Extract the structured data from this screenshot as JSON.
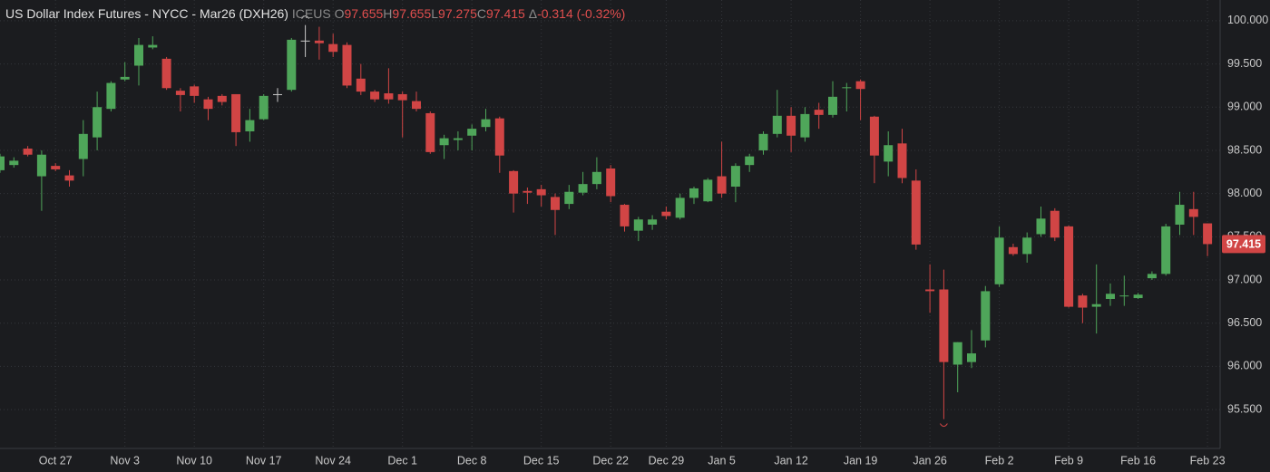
{
  "header": {
    "title": "US Dollar Index Futures - NYCC - Mar26 (DXH26)",
    "exchange": "ICEUS",
    "ohlc": [
      {
        "label": "O",
        "value": 97.655
      },
      {
        "label": "H",
        "value": 97.655
      },
      {
        "label": "L",
        "value": 97.275
      },
      {
        "label": "C",
        "value": 97.415
      }
    ],
    "change_symbol": "Δ",
    "change": -0.314,
    "change_pct": "(-0.32%)"
  },
  "chart_data": {
    "type": "candlestick",
    "categories": [
      null,
      null,
      null,
      null,
      "Oct 27",
      null,
      null,
      null,
      null,
      "Nov 3",
      null,
      null,
      null,
      null,
      "Nov 10",
      null,
      null,
      null,
      null,
      "Nov 17",
      null,
      null,
      null,
      null,
      "Nov 24",
      null,
      null,
      null,
      null,
      "Dec 1",
      null,
      null,
      null,
      null,
      "Dec 8",
      null,
      null,
      null,
      null,
      "Dec 15",
      null,
      null,
      null,
      null,
      "Dec 22",
      null,
      null,
      null,
      "Dec 29",
      null,
      null,
      null,
      "Jan 5",
      null,
      null,
      null,
      null,
      "Jan 12",
      null,
      null,
      null,
      null,
      "Jan 19",
      null,
      null,
      null,
      null,
      "Jan 26",
      null,
      null,
      null,
      null,
      "Feb 2",
      null,
      null,
      null,
      null,
      "Feb 9",
      null,
      null,
      null,
      null,
      "Feb 16",
      null,
      null,
      null,
      null,
      "Feb 23"
    ],
    "open": [
      98.27,
      98.33,
      98.52,
      98.2,
      98.32,
      98.21,
      98.4,
      98.65,
      98.98,
      99.32,
      99.48,
      99.69,
      99.56,
      99.19,
      99.24,
      99.09,
      99.13,
      99.15,
      98.72,
      98.86,
      99.15,
      99.2,
      99.77,
      99.77,
      99.73,
      99.72,
      99.33,
      99.18,
      99.16,
      99.15,
      99.07,
      98.93,
      98.56,
      98.62,
      98.67,
      98.77,
      98.87,
      98.26,
      98.03,
      98.05,
      97.96,
      97.88,
      98.01,
      98.11,
      98.29,
      97.87,
      97.57,
      97.64,
      97.79,
      97.72,
      97.95,
      97.91,
      98.2,
      98.08,
      98.33,
      98.5,
      98.69,
      98.9,
      98.65,
      98.97,
      98.91,
      99.22,
      99.3,
      98.89,
      98.37,
      98.58,
      98.15,
      96.89,
      96.89,
      96.02,
      96.05,
      96.3,
      96.95,
      97.38,
      97.3,
      97.53,
      97.8,
      97.62,
      96.82,
      96.69,
      96.78,
      96.81,
      96.79,
      97.02,
      97.07,
      97.64,
      97.82,
      97.655
    ],
    "high": [
      98.46,
      98.42,
      98.55,
      98.5,
      98.35,
      98.27,
      98.85,
      99.18,
      99.3,
      99.52,
      99.8,
      99.82,
      99.58,
      99.22,
      99.26,
      99.12,
      99.15,
      99.15,
      98.98,
      99.15,
      99.22,
      99.8,
      99.95,
      99.93,
      99.85,
      99.75,
      99.5,
      99.2,
      99.45,
      99.18,
      99.18,
      98.95,
      98.68,
      98.72,
      98.8,
      98.98,
      98.89,
      98.27,
      98.07,
      98.1,
      98.0,
      98.1,
      98.25,
      98.42,
      98.33,
      97.88,
      97.73,
      97.75,
      97.85,
      98.0,
      98.08,
      98.18,
      98.6,
      98.35,
      98.46,
      98.72,
      99.2,
      99.0,
      99.0,
      99.05,
      99.3,
      99.28,
      99.32,
      98.9,
      98.72,
      98.75,
      98.28,
      97.18,
      97.12,
      96.28,
      96.42,
      96.93,
      97.62,
      97.42,
      97.55,
      97.85,
      97.83,
      97.63,
      96.84,
      97.18,
      96.96,
      97.05,
      96.85,
      97.1,
      97.65,
      98.02,
      98.02,
      97.655
    ],
    "low": [
      98.24,
      98.3,
      98.43,
      97.8,
      98.26,
      98.08,
      98.2,
      98.5,
      98.95,
      99.3,
      99.25,
      99.67,
      99.2,
      98.95,
      99.05,
      98.85,
      99.02,
      98.55,
      98.6,
      98.85,
      99.06,
      99.18,
      99.58,
      99.55,
      99.58,
      99.22,
      99.14,
      99.06,
      99.04,
      98.65,
      98.95,
      98.46,
      98.4,
      98.5,
      98.5,
      98.72,
      98.24,
      97.78,
      97.88,
      97.85,
      97.52,
      97.82,
      97.98,
      98.05,
      97.9,
      97.56,
      97.45,
      97.58,
      97.7,
      97.7,
      97.88,
      97.9,
      97.95,
      97.9,
      98.25,
      98.45,
      98.65,
      98.48,
      98.6,
      98.75,
      98.88,
      98.95,
      98.85,
      98.12,
      98.2,
      98.12,
      97.35,
      96.62,
      95.39,
      95.7,
      95.98,
      96.22,
      96.92,
      97.28,
      97.2,
      97.5,
      97.45,
      96.68,
      96.5,
      96.38,
      96.7,
      96.7,
      96.78,
      97.0,
      97.05,
      97.52,
      97.52,
      97.275
    ],
    "close": [
      98.43,
      98.38,
      98.45,
      98.45,
      98.28,
      98.15,
      98.69,
      99.0,
      99.28,
      99.35,
      99.72,
      99.72,
      99.22,
      99.14,
      99.13,
      98.98,
      99.06,
      98.71,
      98.85,
      99.13,
      99.15,
      99.78,
      99.77,
      99.74,
      99.64,
      99.25,
      99.18,
      99.09,
      99.09,
      99.08,
      98.98,
      98.48,
      98.64,
      98.64,
      98.75,
      98.86,
      98.44,
      98.0,
      98.01,
      97.98,
      97.81,
      98.02,
      98.11,
      98.25,
      97.97,
      97.62,
      97.7,
      97.7,
      97.74,
      97.95,
      98.06,
      98.16,
      98.0,
      98.32,
      98.43,
      98.69,
      98.9,
      98.67,
      98.92,
      98.91,
      99.12,
      99.23,
      99.21,
      98.44,
      98.56,
      98.18,
      97.41,
      96.87,
      96.05,
      96.28,
      96.15,
      96.87,
      97.49,
      97.3,
      97.49,
      97.71,
      97.49,
      96.69,
      96.68,
      96.72,
      96.84,
      96.82,
      96.83,
      97.07,
      97.62,
      97.87,
      97.73,
      97.415
    ],
    "up_color": "#4fa65a",
    "down_color": "#d14545",
    "flat_color": "#c8c8c8",
    "ylim": [
      95.05,
      100.24
    ],
    "yticks": [
      {
        "value": 95.5,
        "label": "95.500"
      },
      {
        "value": 96,
        "label": "96.000"
      },
      {
        "value": 96.5,
        "label": "96.500"
      },
      {
        "value": 97,
        "label": "97.000"
      },
      {
        "value": 97.5,
        "label": "97.500"
      },
      {
        "value": 98,
        "label": "98.000"
      },
      {
        "value": 98.5,
        "label": "98.500"
      },
      {
        "value": 99,
        "label": "99.000"
      },
      {
        "value": 99.5,
        "label": "99.500"
      },
      {
        "value": 100,
        "label": "100.000"
      }
    ],
    "grid": true,
    "last_price": 97.415
  }
}
